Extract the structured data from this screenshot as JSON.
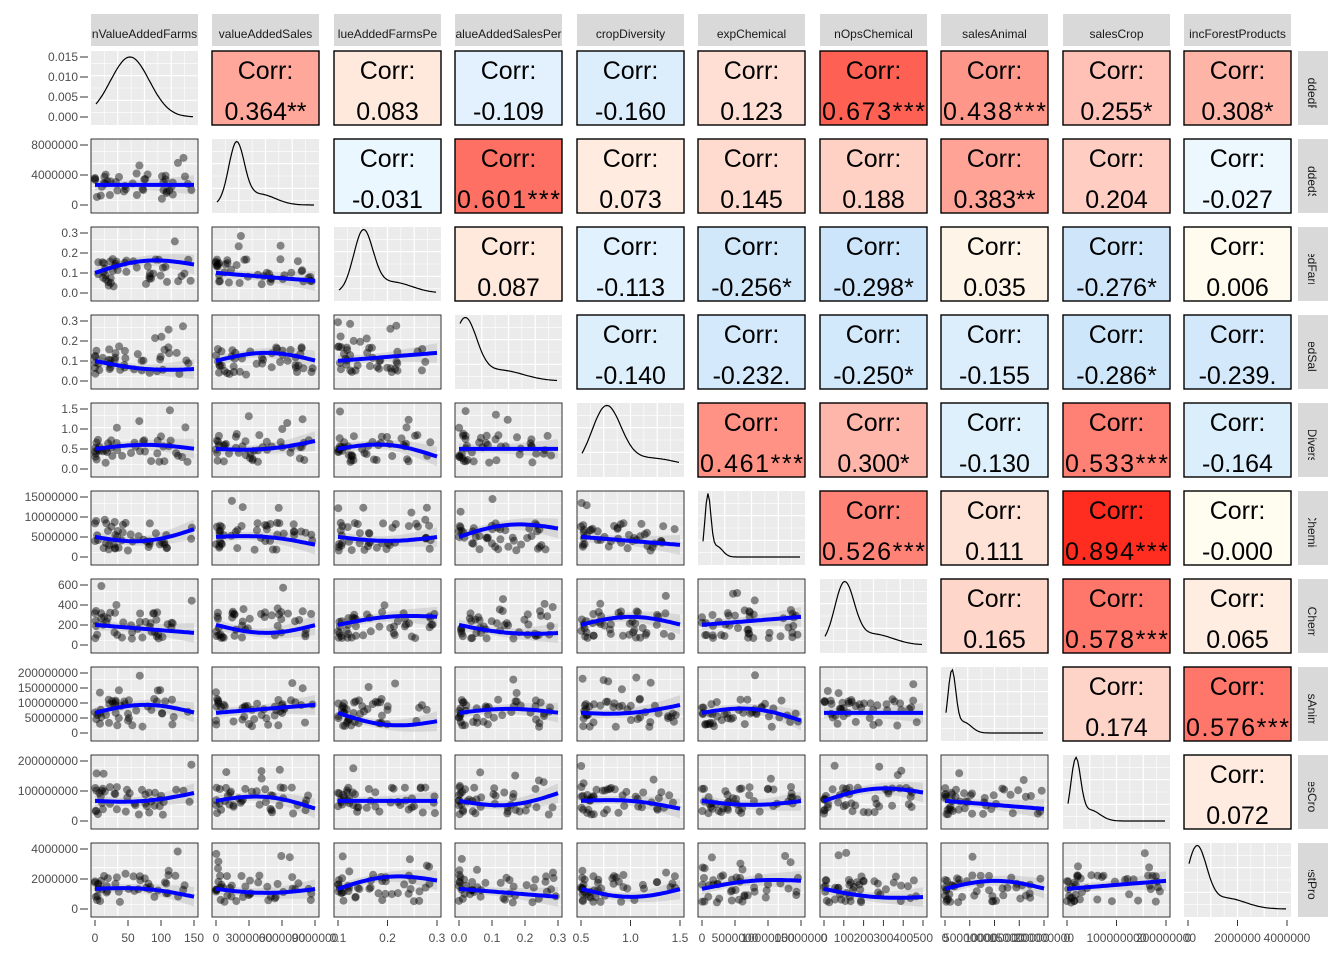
{
  "chart_data": {
    "type": "scatter-matrix",
    "variables": [
      "nValueAddedFarms",
      "valueAddedSales",
      "lueAddedFarmsPe",
      "alueAddedSalesPer",
      "cropDiversity",
      "expChemical",
      "nOpsChemical",
      "salesAnimal",
      "salesCrop",
      "incForestProducts"
    ],
    "row_strip_labels": [
      "iueAddedFar",
      "lueAddedSal",
      "AddedFarms",
      "AddedSales",
      "cropDiversity",
      "expChemical",
      "nOpsChemica",
      "salesAnimal",
      "salesCrop",
      "ForestProdu"
    ],
    "corr_label": "Corr:",
    "correlations": [
      [
        "",
        "0.364**",
        "0.083",
        "-0.109",
        "-0.160",
        "0.123",
        "0.673***",
        "0.438***",
        "0.255*",
        "0.308*"
      ],
      [
        "",
        "",
        "-0.031",
        "0.601***",
        "0.073",
        "0.145",
        "0.188",
        "0.383**",
        "0.204",
        "-0.027"
      ],
      [
        "",
        "",
        "",
        "0.087",
        "-0.113",
        "-0.256*",
        "-0.298*",
        "0.035",
        "-0.276*",
        "0.006"
      ],
      [
        "",
        "",
        "",
        "",
        "-0.140",
        "-0.232.",
        "-0.250*",
        "-0.155",
        "-0.286*",
        "-0.239."
      ],
      [
        "",
        "",
        "",
        "",
        "",
        "0.461***",
        "0.300*",
        "-0.130",
        "0.533***",
        "-0.164"
      ],
      [
        "",
        "",
        "",
        "",
        "",
        "",
        "0.526***",
        "0.111",
        "0.894***",
        "-0.000"
      ],
      [
        "",
        "",
        "",
        "",
        "",
        "",
        "",
        "0.165",
        "0.578***",
        "0.065"
      ],
      [
        "",
        "",
        "",
        "",
        "",
        "",
        "",
        "",
        "0.174",
        "0.576***"
      ],
      [
        "",
        "",
        "",
        "",
        "",
        "",
        "",
        "",
        "",
        "0.072"
      ],
      [
        "",
        "",
        "",
        "",
        "",
        "",
        "",
        "",
        "",
        ""
      ]
    ],
    "y_ticks": [
      [
        "0.015",
        "0.010",
        "0.005",
        "0.000"
      ],
      [
        "8000000",
        "4000000",
        "0"
      ],
      [
        "0.3",
        "0.2",
        "0.1",
        "0.0"
      ],
      [
        "0.3",
        "0.2",
        "0.1",
        "0.0"
      ],
      [
        "1.5",
        "1.0",
        "0.5",
        "0.0"
      ],
      [
        "15000000",
        "10000000",
        "5000000",
        "0"
      ],
      [
        "600",
        "400",
        "200",
        "0"
      ],
      [
        "200000000",
        "150000000",
        "100000000",
        "50000000",
        "0"
      ],
      [
        "200000000",
        "100000000",
        "0"
      ],
      [
        "4000000",
        "2000000",
        "0"
      ]
    ],
    "x_ticks": [
      [
        "0",
        "50",
        "100",
        "150"
      ],
      [
        "0",
        "3000000",
        "6000000",
        "9000000"
      ],
      [
        "0.1",
        "0.2",
        "0.3"
      ],
      [
        "0.0",
        "0.1",
        "0.2",
        "0.3"
      ],
      [
        "0.5",
        "1.0",
        "1.5"
      ],
      [
        "0",
        "5000000",
        "10000000",
        "15000000"
      ],
      [
        "0",
        "100",
        "200",
        "300",
        "400",
        "500"
      ],
      [
        "0",
        "50000000",
        "100000000",
        "150000000",
        "200000000"
      ],
      [
        "0",
        "100000000",
        "200000000"
      ],
      [
        "0",
        "2000000",
        "4000000"
      ]
    ],
    "colors": {
      "smooth": "#0000ff",
      "points": "#000000",
      "strip": "#d9d9d9",
      "panel": "#ebebeb",
      "neg": "#2166ac",
      "pos": "#ff2b1f"
    }
  }
}
